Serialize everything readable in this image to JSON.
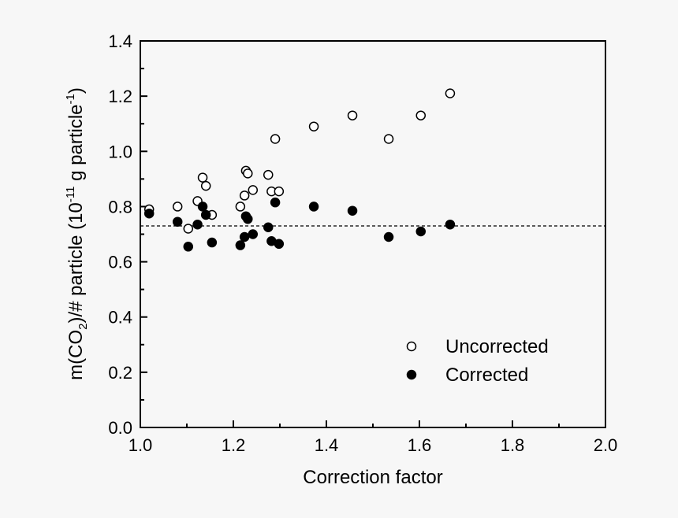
{
  "chart_data": {
    "type": "scatter",
    "title": "",
    "xlabel": "Correction factor",
    "ylabel": "m(CO2)/# particle (10^-11 g particle^-1)",
    "ylabel_parts": {
      "a": "m(CO",
      "b": "2",
      "c": ")/# particle (10",
      "d": "-11",
      "e": " g particle",
      "f": "-1",
      "g": ")"
    },
    "xlim": [
      1.0,
      2.0
    ],
    "ylim": [
      0.0,
      1.4
    ],
    "xticks": [
      "1.0",
      "1.2",
      "1.4",
      "1.6",
      "1.8",
      "2.0"
    ],
    "yticks": [
      "0.0",
      "0.2",
      "0.4",
      "0.6",
      "0.8",
      "1.0",
      "1.2",
      "1.4"
    ],
    "grid": false,
    "legend_position": "bottom-right",
    "reference_line": {
      "y": 0.73,
      "style": "dashed"
    },
    "series": [
      {
        "name": "Uncorrected",
        "marker": "open-circle",
        "points": [
          [
            1.019,
            0.79
          ],
          [
            1.08,
            0.8
          ],
          [
            1.103,
            0.72
          ],
          [
            1.123,
            0.82
          ],
          [
            1.134,
            0.905
          ],
          [
            1.141,
            0.875
          ],
          [
            1.154,
            0.77
          ],
          [
            1.215,
            0.8
          ],
          [
            1.224,
            0.84
          ],
          [
            1.227,
            0.93
          ],
          [
            1.231,
            0.92
          ],
          [
            1.242,
            0.86
          ],
          [
            1.275,
            0.915
          ],
          [
            1.282,
            0.855
          ],
          [
            1.298,
            0.855
          ],
          [
            1.29,
            1.045
          ],
          [
            1.373,
            1.09
          ],
          [
            1.456,
            1.13
          ],
          [
            1.534,
            1.045
          ],
          [
            1.603,
            1.13
          ],
          [
            1.666,
            1.21
          ]
        ]
      },
      {
        "name": "Corrected",
        "marker": "filled-circle",
        "points": [
          [
            1.019,
            0.775
          ],
          [
            1.08,
            0.745
          ],
          [
            1.103,
            0.655
          ],
          [
            1.123,
            0.735
          ],
          [
            1.134,
            0.8
          ],
          [
            1.141,
            0.77
          ],
          [
            1.154,
            0.67
          ],
          [
            1.215,
            0.66
          ],
          [
            1.224,
            0.69
          ],
          [
            1.227,
            0.765
          ],
          [
            1.231,
            0.755
          ],
          [
            1.242,
            0.7
          ],
          [
            1.275,
            0.725
          ],
          [
            1.282,
            0.675
          ],
          [
            1.298,
            0.665
          ],
          [
            1.29,
            0.815
          ],
          [
            1.373,
            0.8
          ],
          [
            1.456,
            0.785
          ],
          [
            1.534,
            0.69
          ],
          [
            1.603,
            0.71
          ],
          [
            1.666,
            0.735
          ]
        ]
      }
    ]
  }
}
